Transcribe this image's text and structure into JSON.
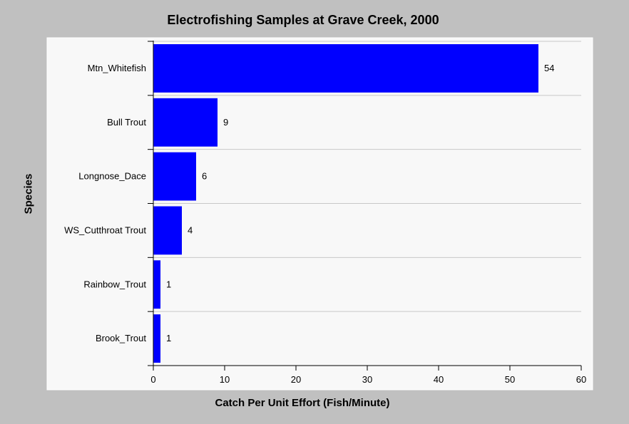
{
  "chart_data": {
    "type": "bar",
    "orientation": "horizontal",
    "title": "Electrofishing Samples at Grave Creek, 2000",
    "xlabel": "Catch Per Unit Effort (Fish/Minute)",
    "ylabel": "Species",
    "categories": [
      "Mtn_Whitefish",
      "Bull Trout",
      "Longnose_Dace",
      "WS_Cutthroat Trout",
      "Rainbow_Trout",
      "Brook_Trout"
    ],
    "values": [
      54,
      9,
      6,
      4,
      1,
      1
    ],
    "xlim": [
      0,
      60
    ],
    "xticks": [
      0,
      10,
      20,
      30,
      40,
      50,
      60
    ],
    "grid": true,
    "legend": "none",
    "colors": {
      "bar": "#0000ff",
      "plot_background": "#f8f8f8",
      "page_background": "#c0c0c0",
      "grid": "#c8c8c8"
    }
  }
}
